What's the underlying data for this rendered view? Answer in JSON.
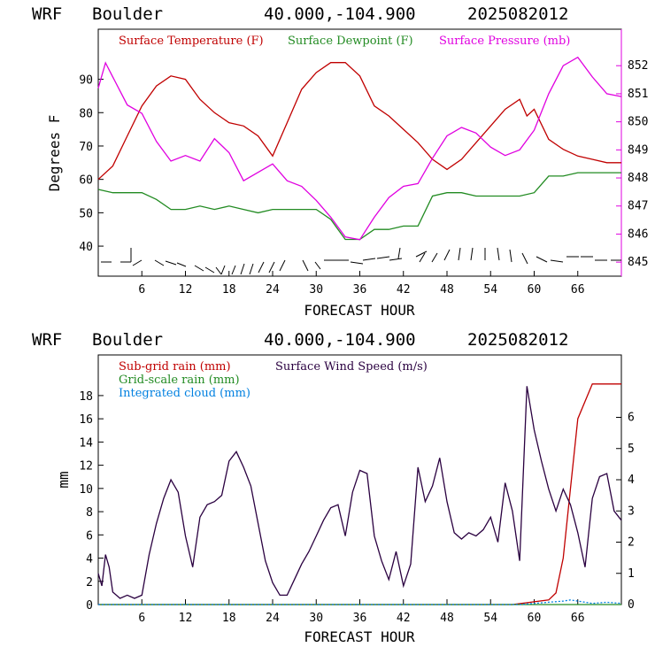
{
  "colors": {
    "temperature": "#c00000",
    "dewpoint": "#228b22",
    "pressure": "#e000e0",
    "subgrid_rain": "#c00000",
    "gridscale_rain": "#228b22",
    "integrated_cloud": "#0080e0",
    "wind_speed": "#2a0040"
  },
  "chart_data": [
    {
      "type": "line",
      "header": {
        "model": "WRF",
        "location": "Boulder",
        "coords": "40.000,-104.900",
        "init": "2025082012"
      },
      "xlabel": "FORECAST HOUR",
      "ylabel": "Degrees F",
      "xlim": [
        0,
        72
      ],
      "ylim": [
        31,
        105
      ],
      "x_ticks": [
        "6",
        "12",
        "18",
        "24",
        "30",
        "36",
        "42",
        "48",
        "54",
        "60",
        "66"
      ],
      "y_ticks": [
        "40",
        "50",
        "60",
        "70",
        "80",
        "90"
      ],
      "y2lim": [
        844.5,
        853.3
      ],
      "y2_ticks": [
        "845",
        "846",
        "847",
        "848",
        "849",
        "850",
        "851",
        "852"
      ],
      "legend": [
        "Surface Temperature (F)",
        "Surface Dewpoint (F)",
        "Surface Pressure (mb)"
      ],
      "series": [
        {
          "name": "Surface Temperature (F)",
          "axis": "left",
          "x": [
            0,
            2,
            4,
            6,
            8,
            10,
            12,
            14,
            16,
            18,
            20,
            22,
            24,
            26,
            28,
            30,
            32,
            34,
            36,
            38,
            40,
            42,
            44,
            46,
            48,
            50,
            52,
            54,
            56,
            58,
            59,
            60,
            62,
            64,
            66,
            68,
            70,
            72
          ],
          "y": [
            60,
            64,
            73,
            82,
            88,
            91,
            90,
            84,
            80,
            77,
            76,
            73,
            67,
            77,
            87,
            92,
            95,
            95,
            91,
            82,
            79,
            75,
            71,
            66,
            63,
            66,
            71,
            76,
            81,
            84,
            79,
            81,
            72,
            69,
            67,
            66,
            65,
            65
          ]
        },
        {
          "name": "Surface Dewpoint (F)",
          "axis": "left",
          "x": [
            0,
            2,
            4,
            6,
            8,
            10,
            12,
            14,
            16,
            18,
            20,
            22,
            24,
            26,
            28,
            30,
            32,
            34,
            36,
            38,
            40,
            42,
            44,
            46,
            48,
            50,
            52,
            54,
            56,
            58,
            60,
            62,
            64,
            66,
            68,
            70,
            72
          ],
          "y": [
            57,
            56,
            56,
            56,
            54,
            51,
            51,
            52,
            51,
            52,
            51,
            50,
            51,
            51,
            51,
            51,
            48,
            42,
            42,
            45,
            45,
            46,
            46,
            55,
            56,
            56,
            55,
            55,
            55,
            55,
            56,
            61,
            61,
            62,
            62,
            62,
            62
          ]
        },
        {
          "name": "Surface Pressure (mb)",
          "axis": "right",
          "x": [
            0,
            1,
            2,
            4,
            6,
            8,
            10,
            12,
            14,
            16,
            18,
            20,
            22,
            24,
            26,
            28,
            30,
            32,
            34,
            36,
            38,
            40,
            42,
            44,
            46,
            48,
            50,
            52,
            54,
            56,
            58,
            60,
            62,
            64,
            66,
            68,
            70,
            72
          ],
          "y": [
            851.2,
            852.1,
            851.6,
            850.6,
            850.3,
            849.3,
            848.6,
            848.8,
            848.6,
            849.4,
            848.9,
            847.9,
            848.2,
            848.5,
            847.9,
            847.7,
            847.2,
            846.6,
            845.9,
            845.8,
            846.6,
            847.3,
            847.7,
            847.8,
            848.7,
            849.5,
            849.8,
            849.6,
            849.1,
            848.8,
            849,
            849.7,
            851,
            852,
            852.3,
            851.6,
            851,
            850.9
          ]
        }
      ],
      "wind_barbs": "row of wind barbs along the bottom of the panel"
    },
    {
      "type": "line",
      "header": {
        "model": "WRF",
        "location": "Boulder",
        "coords": "40.000,-104.900",
        "init": "2025082012"
      },
      "xlabel": "FORECAST HOUR",
      "ylabel": "mm",
      "xlim": [
        0,
        72
      ],
      "ylim": [
        0,
        21.5
      ],
      "x_ticks": [
        "6",
        "12",
        "18",
        "24",
        "30",
        "36",
        "42",
        "48",
        "54",
        "60",
        "66"
      ],
      "y_ticks": [
        "0",
        "2",
        "4",
        "6",
        "8",
        "10",
        "12",
        "14",
        "16",
        "18"
      ],
      "y2lim": [
        0,
        8
      ],
      "y2_ticks": [
        "0",
        "1",
        "2",
        "3",
        "4",
        "5",
        "6"
      ],
      "legend": [
        "Sub-grid rain (mm)",
        "Grid-scale rain (mm)",
        "Integrated cloud (mm)",
        "Surface Wind Speed (m/s)"
      ],
      "series": [
        {
          "name": "Sub-grid rain (mm)",
          "axis": "left",
          "x": [
            0,
            57,
            62,
            63,
            64,
            65,
            66,
            68,
            72
          ],
          "y": [
            0,
            0,
            0.4,
            1,
            4,
            10,
            16,
            19,
            19
          ]
        },
        {
          "name": "Grid-scale rain (mm)",
          "axis": "left",
          "x": [
            0,
            72
          ],
          "y": [
            0,
            0
          ]
        },
        {
          "name": "Integrated cloud (mm)",
          "axis": "left",
          "x": [
            0,
            58,
            60,
            62,
            64,
            65,
            66,
            68,
            70,
            72
          ],
          "y": [
            0,
            0,
            0.1,
            0.2,
            0.3,
            0.4,
            0.3,
            0.1,
            0.2,
            0.1
          ]
        },
        {
          "name": "Surface Wind Speed (m/s)",
          "axis": "right",
          "x": [
            0,
            0.5,
            1,
            1.5,
            2,
            3,
            4,
            5,
            6,
            7,
            8,
            9,
            10,
            11,
            12,
            13,
            14,
            15,
            16,
            17,
            18,
            19,
            20,
            21,
            22,
            23,
            24,
            25,
            26,
            27,
            28,
            29,
            30,
            31,
            32,
            33,
            34,
            35,
            36,
            37,
            38,
            39,
            40,
            41,
            42,
            43,
            44,
            45,
            46,
            47,
            48,
            49,
            50,
            51,
            52,
            53,
            54,
            55,
            56,
            57,
            58,
            59,
            60,
            61,
            62,
            63,
            64,
            65,
            66,
            67,
            68,
            69,
            70,
            71,
            72
          ],
          "y": [
            1,
            0.6,
            1.6,
            1.2,
            0.4,
            0.2,
            0.3,
            0.2,
            0.3,
            1.6,
            2.6,
            3.4,
            4,
            3.6,
            2.2,
            1.2,
            2.8,
            3.2,
            3.3,
            3.5,
            4.6,
            4.9,
            4.4,
            3.8,
            2.6,
            1.4,
            0.7,
            0.3,
            0.3,
            0.8,
            1.3,
            1.7,
            2.2,
            2.7,
            3.1,
            3.2,
            2.2,
            3.6,
            4.3,
            4.2,
            2.2,
            1.4,
            0.8,
            1.7,
            0.6,
            1.3,
            4.4,
            3.3,
            3.8,
            4.7,
            3.3,
            2.3,
            2.1,
            2.3,
            2.2,
            2.4,
            2.8,
            2.0,
            3.9,
            3.0,
            1.4,
            7.0,
            5.6,
            4.6,
            3.7,
            3.0,
            3.7,
            3.2,
            2.3,
            1.2,
            3.4,
            4.1,
            4.2,
            3.0,
            2.7
          ]
        }
      ]
    }
  ]
}
